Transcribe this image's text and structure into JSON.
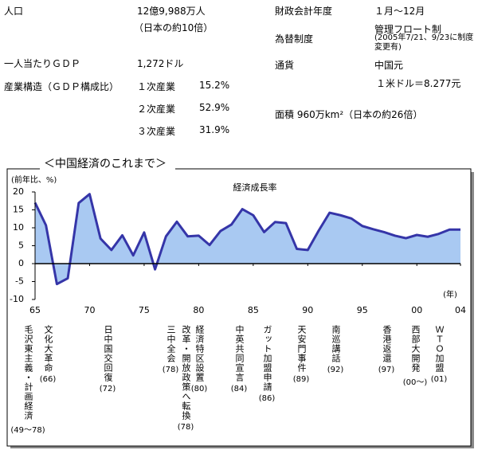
{
  "info": {
    "population": {
      "label": "人口",
      "value": "12億9,988万人",
      "note": "（日本の約10倍）"
    },
    "gdp_per_capita": {
      "label": "一人当たりＧＤＰ",
      "value": "1,272ドル"
    },
    "industry": {
      "label": "産業構造（ＧＤＰ構成比）",
      "sectors": [
        {
          "name": "１次産業",
          "share": "15.2%"
        },
        {
          "name": "２次産業",
          "share": "52.9%"
        },
        {
          "name": "３次産業",
          "share": "31.9%"
        }
      ]
    },
    "fiscal_year": {
      "label": "財政会計年度",
      "value": "１月～12月"
    },
    "exchange": {
      "label": "為替制度",
      "value": "管理フロート制",
      "note": "(2005年7/21、9/23に制度変更有)"
    },
    "currency": {
      "label": "通貨",
      "value": "中国元",
      "rate": "１米ドル＝8.277元"
    },
    "area": "面積  960万km²（日本の約26倍）"
  },
  "chart_data": {
    "type": "area",
    "title": "＜中国経済のこれまで＞",
    "y_label": "(前年比、%)",
    "x_label": "(年)",
    "x": [
      1965,
      1966,
      1967,
      1968,
      1969,
      1970,
      1971,
      1972,
      1973,
      1974,
      1975,
      1976,
      1977,
      1978,
      1979,
      1980,
      1981,
      1982,
      1983,
      1984,
      1985,
      1986,
      1987,
      1988,
      1989,
      1990,
      1991,
      1992,
      1993,
      1994,
      1995,
      1996,
      1997,
      1998,
      1999,
      2000,
      2001,
      2002,
      2003,
      2004
    ],
    "series": [
      {
        "name": "経済成長率",
        "color": "#3535a8",
        "fill": "#a9c9f2",
        "values": [
          17,
          10.7,
          -5.7,
          -4.1,
          16.9,
          19.4,
          7,
          3.8,
          7.9,
          2.3,
          8.7,
          -1.6,
          7.6,
          11.7,
          7.6,
          7.8,
          5.2,
          9.1,
          10.9,
          15.2,
          13.5,
          8.8,
          11.6,
          11.3,
          4.1,
          3.8,
          9.2,
          14.2,
          13.5,
          12.6,
          10.5,
          9.6,
          8.8,
          7.8,
          7.1,
          8,
          7.5,
          8.3,
          9.5,
          9.5
        ]
      }
    ],
    "xlim": [
      1965,
      2004
    ],
    "xticks": [
      {
        "value": 1965,
        "label": "65"
      },
      {
        "value": 1970,
        "label": "70"
      },
      {
        "value": 1975,
        "label": "75"
      },
      {
        "value": 1980,
        "label": "80"
      },
      {
        "value": 1985,
        "label": "85"
      },
      {
        "value": 1990,
        "label": "90"
      },
      {
        "value": 1995,
        "label": "95"
      },
      {
        "value": 2000,
        "label": "00"
      },
      {
        "value": 2004,
        "label": "04"
      }
    ],
    "ylim": [
      -10,
      20
    ],
    "yticks": [
      -10,
      -5,
      0,
      5,
      10,
      15,
      20
    ],
    "annotations": [
      {
        "text": "毛沢東主義・計画経済",
        "period": "(49～78)"
      },
      {
        "text": "文化大革命",
        "period": "(66)"
      },
      {
        "text": "日中国交回復",
        "period": "(72)"
      },
      {
        "text": "三中全会",
        "period": "(78)"
      },
      {
        "text": "改革・開放政策へ転換",
        "period": "(78)"
      },
      {
        "text": "経済特区設置",
        "period": "(80)"
      },
      {
        "text": "中英共同宣言",
        "period": "(84)"
      },
      {
        "text": "ガット加盟申請",
        "period": "(86)"
      },
      {
        "text": "天安門事件",
        "period": "(89)"
      },
      {
        "text": "南巡講話",
        "period": "(92)"
      },
      {
        "text": "香港返還",
        "period": "(97)"
      },
      {
        "text": "西部大開発",
        "period": "(00～)"
      },
      {
        "text": "ＷＴＯ加盟",
        "period": "(01)"
      }
    ]
  }
}
